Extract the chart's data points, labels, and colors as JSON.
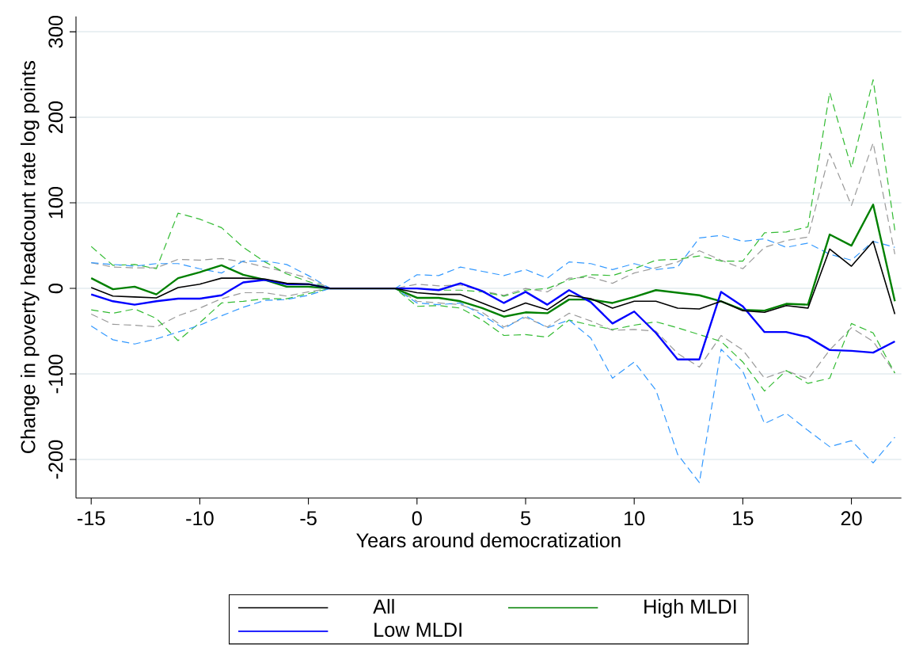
{
  "chart_data": {
    "type": "line",
    "xlabel": "Years around democratization",
    "ylabel": "Change in poverty headcount rate log points",
    "x": [
      -15,
      -14,
      -13,
      -12,
      -11,
      -10,
      -9,
      -8,
      -7,
      -6,
      -5,
      -4,
      -3,
      -2,
      -1,
      0,
      1,
      2,
      3,
      4,
      5,
      6,
      7,
      8,
      9,
      10,
      11,
      12,
      13,
      14,
      15,
      16,
      17,
      18,
      19,
      20,
      21,
      22
    ],
    "series": [
      {
        "name": "All",
        "color": "#000000",
        "line_style": "solid",
        "values": [
          1,
          -9,
          -10,
          -11,
          1,
          5,
          12,
          12,
          11,
          6,
          5,
          0,
          0,
          0,
          0,
          -5,
          -7,
          -7,
          -17,
          -27,
          -17,
          -25,
          -8,
          -12,
          -23,
          -15,
          -15,
          -23,
          -24,
          -15,
          -26,
          -28,
          -20,
          -23,
          46,
          26,
          55,
          -30
        ]
      },
      {
        "name": "High MLDI",
        "color": "#008000",
        "line_style": "solid",
        "values": [
          12,
          -1,
          2,
          -7,
          12,
          19,
          27,
          16,
          10,
          2,
          2,
          0,
          0,
          0,
          0,
          -11,
          -11,
          -15,
          -23,
          -33,
          -28,
          -29,
          -13,
          -13,
          -17,
          -10,
          -2,
          -5,
          -8,
          -15,
          -25,
          -26,
          -18,
          -19,
          63,
          50,
          98,
          -15
        ]
      },
      {
        "name": "Low MLDI",
        "color": "#0000ff",
        "line_style": "solid",
        "values": [
          -7,
          -15,
          -19,
          -15,
          -12,
          -12,
          -8,
          7,
          10,
          5,
          5,
          0,
          0,
          0,
          0,
          0,
          -2,
          6,
          -3,
          -17,
          -4,
          -19,
          -2,
          -16,
          -41,
          -27,
          -52,
          -83,
          -83,
          -4,
          -21,
          -51,
          -51,
          -57,
          -72,
          -73,
          -75,
          -62
        ]
      },
      {
        "color": "#999999",
        "line_style": "dashed",
        "values": [
          30,
          25,
          24,
          24,
          34,
          33,
          35,
          31,
          25,
          19,
          12,
          0,
          0,
          0,
          0,
          5,
          3,
          4,
          -3,
          -8,
          0,
          -4,
          12,
          13,
          6,
          18,
          24,
          31,
          44,
          33,
          23,
          48,
          56,
          60,
          158,
          97,
          170,
          40
        ]
      },
      {
        "color": "#999999",
        "line_style": "dashed",
        "values": [
          -30,
          -42,
          -43,
          -45,
          -32,
          -23,
          -12,
          -5,
          -5,
          -9,
          -4,
          0,
          0,
          0,
          0,
          -15,
          -17,
          -19,
          -28,
          -45,
          -34,
          -45,
          -29,
          -38,
          -49,
          -48,
          -50,
          -76,
          -92,
          -55,
          -72,
          -105,
          -96,
          -106,
          -72,
          -46,
          -62,
          -99
        ]
      },
      {
        "color": "#33bb33",
        "line_style": "dashed",
        "values": [
          49,
          27,
          28,
          23,
          88,
          81,
          71,
          48,
          31,
          17,
          8,
          0,
          0,
          0,
          0,
          0,
          -2,
          -2,
          -4,
          -9,
          -2,
          0,
          10,
          16,
          15,
          23,
          33,
          34,
          38,
          32,
          32,
          65,
          66,
          72,
          229,
          141,
          244,
          68
        ]
      },
      {
        "color": "#33bb33",
        "line_style": "dashed",
        "values": [
          -25,
          -29,
          -24,
          -35,
          -61,
          -40,
          -17,
          -15,
          -12,
          -12,
          -6,
          0,
          0,
          0,
          0,
          -21,
          -20,
          -23,
          -37,
          -55,
          -54,
          -57,
          -37,
          -43,
          -48,
          -43,
          -39,
          -46,
          -54,
          -62,
          -86,
          -120,
          -96,
          -111,
          -105,
          -41,
          -52,
          -99
        ]
      },
      {
        "color": "#3399ff",
        "line_style": "dashed",
        "values": [
          30,
          28,
          26,
          29,
          29,
          23,
          18,
          32,
          32,
          28,
          15,
          0,
          0,
          0,
          0,
          16,
          15,
          25,
          20,
          15,
          22,
          12,
          31,
          29,
          22,
          29,
          22,
          25,
          59,
          62,
          55,
          58,
          48,
          53,
          40,
          33,
          55,
          48
        ]
      },
      {
        "color": "#3399ff",
        "line_style": "dashed",
        "values": [
          -44,
          -60,
          -65,
          -59,
          -51,
          -43,
          -32,
          -22,
          -14,
          -13,
          -8,
          0,
          0,
          0,
          0,
          -17,
          -19,
          -17,
          -31,
          -47,
          -32,
          -46,
          -37,
          -58,
          -105,
          -86,
          -119,
          -194,
          -227,
          -71,
          -97,
          -158,
          -146,
          -166,
          -185,
          -178,
          -204,
          -174
        ]
      }
    ],
    "xlim": [
      -15.7,
      22.3
    ],
    "ylim": [
      -245,
      318
    ],
    "xticks": [
      -15,
      -10,
      -5,
      0,
      5,
      10,
      15,
      20
    ],
    "yticks": [
      -200,
      -100,
      0,
      100,
      200,
      300
    ],
    "grid": "y",
    "legend": "bottom"
  }
}
